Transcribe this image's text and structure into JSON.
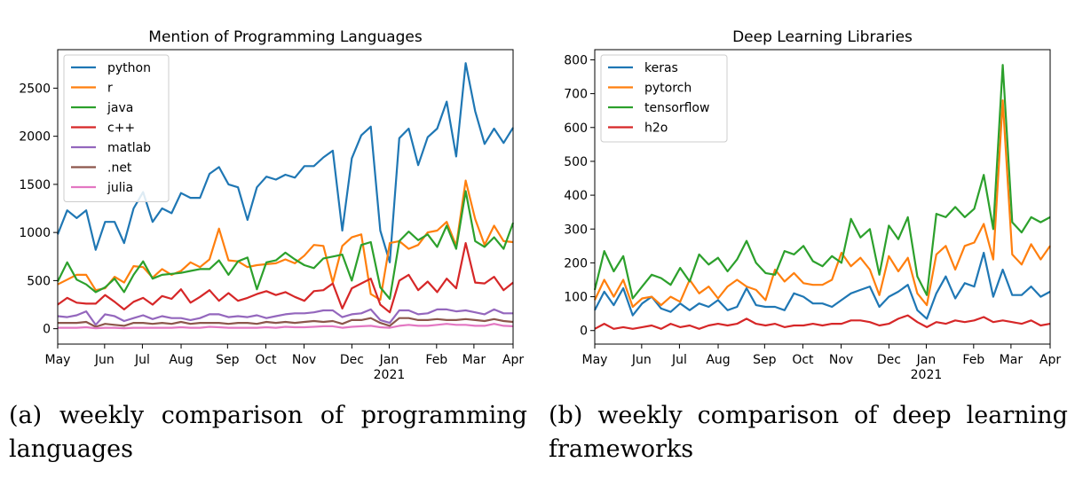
{
  "chart_data": [
    {
      "type": "line",
      "title": "Mention of Programming Languages",
      "xlabel": "",
      "ylabel": "",
      "x_ticks": [
        "May",
        "Jun",
        "Jul",
        "Aug",
        "Sep",
        "Oct",
        "Nov",
        "Dec",
        "Jan",
        "Feb",
        "Mar",
        "Apr"
      ],
      "x_year_label": "2021",
      "y_ticks": [
        0,
        500,
        1000,
        1500,
        2000,
        2500
      ],
      "ylim": [
        -160,
        2900
      ],
      "grid": false,
      "legend_position": "top-left",
      "series": [
        {
          "name": "python",
          "color": "#1f77b4",
          "values": [
            980,
            1230,
            1150,
            1230,
            820,
            1110,
            1110,
            890,
            1250,
            1420,
            1110,
            1250,
            1200,
            1410,
            1360,
            1360,
            1610,
            1680,
            1500,
            1470,
            1130,
            1470,
            1580,
            1550,
            1600,
            1570,
            1690,
            1690,
            1780,
            1850,
            1020,
            1770,
            2010,
            2100,
            1020,
            690,
            1980,
            2080,
            1700,
            1990,
            2080,
            2360,
            1790,
            2760,
            2260,
            1920,
            2080,
            1930,
            2090
          ]
        },
        {
          "name": "r",
          "color": "#ff7f0e",
          "values": [
            460,
            510,
            560,
            560,
            400,
            420,
            540,
            480,
            650,
            640,
            530,
            620,
            560,
            600,
            690,
            640,
            720,
            1040,
            710,
            700,
            640,
            660,
            670,
            680,
            720,
            680,
            760,
            870,
            860,
            480,
            860,
            950,
            980,
            360,
            300,
            890,
            910,
            830,
            870,
            1000,
            1020,
            1110,
            860,
            1540,
            1140,
            870,
            1070,
            910,
            900
          ]
        },
        {
          "name": "java",
          "color": "#2ca02c",
          "values": [
            490,
            690,
            510,
            460,
            380,
            430,
            520,
            380,
            560,
            700,
            520,
            560,
            570,
            580,
            600,
            620,
            620,
            710,
            560,
            700,
            740,
            410,
            690,
            710,
            790,
            720,
            660,
            630,
            730,
            750,
            770,
            500,
            870,
            900,
            430,
            310,
            910,
            1010,
            920,
            980,
            850,
            1070,
            830,
            1430,
            910,
            850,
            950,
            830,
            1100
          ]
        },
        {
          "name": "c++",
          "color": "#d62728",
          "values": [
            250,
            320,
            270,
            260,
            260,
            350,
            280,
            200,
            280,
            320,
            250,
            340,
            310,
            410,
            270,
            330,
            400,
            290,
            370,
            290,
            320,
            360,
            390,
            350,
            380,
            330,
            290,
            390,
            400,
            470,
            210,
            420,
            470,
            520,
            250,
            170,
            500,
            560,
            400,
            490,
            380,
            520,
            420,
            890,
            480,
            470,
            540,
            400,
            480
          ]
        },
        {
          "name": "matlab",
          "color": "#9467bd",
          "values": [
            130,
            120,
            140,
            180,
            40,
            150,
            130,
            80,
            110,
            140,
            100,
            130,
            110,
            110,
            90,
            110,
            150,
            150,
            120,
            130,
            120,
            140,
            110,
            130,
            150,
            160,
            160,
            170,
            190,
            190,
            120,
            150,
            160,
            200,
            90,
            60,
            190,
            190,
            150,
            160,
            200,
            200,
            180,
            190,
            170,
            150,
            200,
            160,
            160
          ]
        },
        {
          "name": ".net",
          "color": "#8c564b",
          "values": [
            60,
            60,
            60,
            70,
            20,
            50,
            40,
            30,
            60,
            60,
            50,
            60,
            50,
            70,
            50,
            60,
            60,
            60,
            50,
            60,
            60,
            50,
            70,
            60,
            70,
            60,
            70,
            80,
            70,
            80,
            50,
            90,
            90,
            110,
            60,
            30,
            110,
            110,
            90,
            90,
            100,
            90,
            90,
            100,
            90,
            80,
            100,
            80,
            70
          ]
        },
        {
          "name": "julia",
          "color": "#e377c2",
          "values": [
            10,
            10,
            10,
            15,
            5,
            10,
            10,
            5,
            10,
            10,
            10,
            10,
            10,
            15,
            10,
            10,
            20,
            15,
            10,
            10,
            10,
            10,
            15,
            10,
            20,
            15,
            15,
            20,
            25,
            25,
            10,
            20,
            25,
            30,
            15,
            10,
            30,
            40,
            30,
            30,
            40,
            50,
            40,
            40,
            30,
            30,
            50,
            30,
            25
          ]
        }
      ]
    },
    {
      "type": "line",
      "title": "Deep Learning Libraries",
      "xlabel": "",
      "ylabel": "",
      "x_ticks": [
        "May",
        "Jun",
        "Jul",
        "Aug",
        "Sep",
        "Oct",
        "Nov",
        "Dec",
        "Jan",
        "Feb",
        "Mar",
        "Apr"
      ],
      "x_year_label": "2021",
      "y_ticks": [
        0,
        100,
        200,
        300,
        400,
        500,
        600,
        700,
        800
      ],
      "ylim": [
        -40,
        830
      ],
      "grid": false,
      "legend_position": "top-left",
      "series": [
        {
          "name": "keras",
          "color": "#1f77b4",
          "values": [
            60,
            115,
            75,
            125,
            45,
            80,
            100,
            65,
            55,
            80,
            60,
            80,
            70,
            90,
            60,
            70,
            125,
            75,
            70,
            70,
            60,
            110,
            100,
            80,
            80,
            70,
            90,
            110,
            120,
            130,
            70,
            100,
            115,
            135,
            60,
            35,
            110,
            160,
            95,
            140,
            130,
            230,
            100,
            180,
            105,
            105,
            130,
            100,
            115
          ]
        },
        {
          "name": "pytorch",
          "color": "#ff7f0e",
          "values": [
            90,
            150,
            100,
            150,
            70,
            95,
            100,
            75,
            100,
            85,
            150,
            110,
            130,
            95,
            130,
            150,
            130,
            120,
            90,
            180,
            145,
            170,
            140,
            135,
            135,
            150,
            230,
            190,
            215,
            180,
            105,
            220,
            175,
            215,
            110,
            75,
            225,
            250,
            180,
            250,
            260,
            315,
            210,
            680,
            225,
            195,
            255,
            210,
            250
          ]
        },
        {
          "name": "tensorflow",
          "color": "#2ca02c",
          "values": [
            120,
            235,
            175,
            220,
            95,
            130,
            165,
            155,
            135,
            185,
            145,
            225,
            195,
            215,
            175,
            210,
            265,
            200,
            170,
            165,
            235,
            225,
            250,
            205,
            190,
            220,
            200,
            330,
            275,
            300,
            165,
            310,
            270,
            335,
            160,
            105,
            345,
            335,
            365,
            335,
            360,
            460,
            300,
            785,
            320,
            290,
            335,
            320,
            335
          ]
        },
        {
          "name": "h2o",
          "color": "#d62728",
          "values": [
            5,
            20,
            5,
            10,
            5,
            10,
            15,
            5,
            20,
            10,
            15,
            5,
            15,
            20,
            15,
            20,
            35,
            20,
            15,
            20,
            10,
            15,
            15,
            20,
            15,
            20,
            20,
            30,
            30,
            25,
            15,
            20,
            35,
            45,
            25,
            10,
            25,
            20,
            30,
            25,
            30,
            40,
            25,
            30,
            25,
            20,
            30,
            15,
            20
          ]
        }
      ]
    }
  ],
  "captions": {
    "a_line1": [
      "(a)",
      "weekly",
      "comparison",
      "of",
      "programming"
    ],
    "a_line2": "languages",
    "b_line1": [
      "(b)",
      "weekly",
      "comparison",
      "of",
      "deep",
      "learning"
    ],
    "b_line2": "frameworks"
  }
}
